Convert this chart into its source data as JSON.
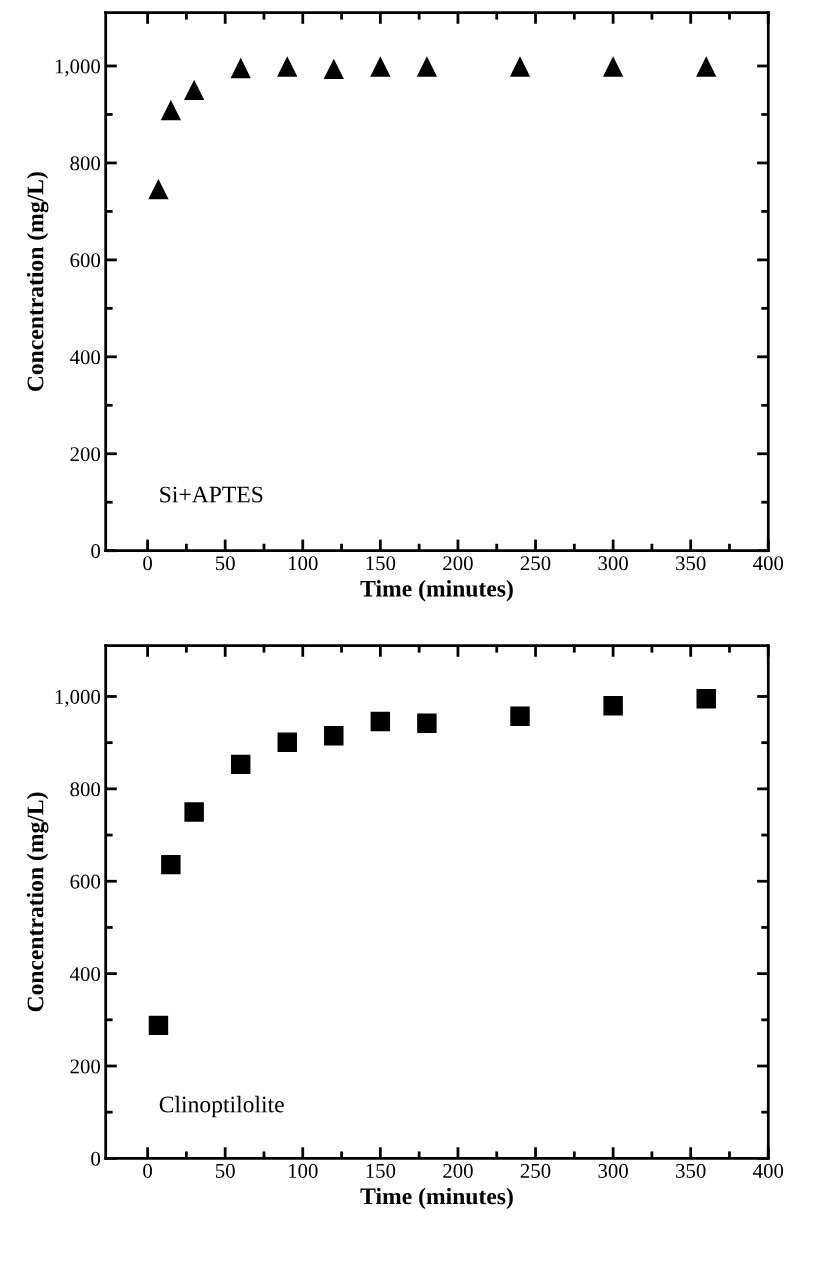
{
  "chart_data": [
    {
      "type": "scatter",
      "xlabel": "Time (minutes)",
      "ylabel": "Concentration (mg/L)",
      "annotations": [
        "Si+APTES"
      ],
      "marker": "triangle",
      "grid": false,
      "legend": false,
      "x": [
        7,
        15,
        30,
        60,
        90,
        120,
        150,
        180,
        240,
        300,
        360
      ],
      "series": [
        {
          "color": "#000000",
          "values": [
            745,
            908,
            950,
            995,
            998,
            993,
            998,
            998,
            998,
            998,
            998
          ]
        }
      ],
      "xlim": [
        -27,
        400
      ],
      "ylim": [
        0,
        1110
      ],
      "xticks": [
        0,
        {
          "value": 25,
          "label": null
        },
        50,
        {
          "value": 75,
          "label": null
        },
        100,
        {
          "value": 125,
          "label": null
        },
        150,
        {
          "value": 175,
          "label": null
        },
        200,
        {
          "value": 225,
          "label": null
        },
        250,
        {
          "value": 275,
          "label": null
        },
        300,
        {
          "value": 325,
          "label": null
        },
        350,
        {
          "value": 375,
          "label": null
        },
        400
      ],
      "yticks": [
        0,
        {
          "value": 100,
          "label": null
        },
        200,
        {
          "value": 300,
          "label": null
        },
        400,
        {
          "value": 500,
          "label": null
        },
        600,
        {
          "value": 700,
          "label": null
        },
        800,
        {
          "value": 900,
          "label": null
        },
        {
          "value": 1000,
          "label": "1,000"
        }
      ]
    },
    {
      "type": "scatter",
      "xlabel": "Time (minutes)",
      "ylabel": "Concentration (mg/L)",
      "annotations": [
        "Clinoptilolite"
      ],
      "marker": "square",
      "grid": false,
      "legend": false,
      "x": [
        7,
        15,
        30,
        60,
        90,
        120,
        150,
        180,
        240,
        300,
        360
      ],
      "series": [
        {
          "color": "#000000",
          "values": [
            288,
            636,
            750,
            853,
            901,
            915,
            946,
            942,
            957,
            980,
            995
          ]
        }
      ],
      "xlim": [
        -27,
        400
      ],
      "ylim": [
        0,
        1110
      ],
      "xticks": [
        0,
        {
          "value": 25,
          "label": null
        },
        50,
        {
          "value": 75,
          "label": null
        },
        100,
        {
          "value": 125,
          "label": null
        },
        150,
        {
          "value": 175,
          "label": null
        },
        200,
        {
          "value": 225,
          "label": null
        },
        250,
        {
          "value": 275,
          "label": null
        },
        300,
        {
          "value": 325,
          "label": null
        },
        350,
        {
          "value": 375,
          "label": null
        },
        400
      ],
      "yticks": [
        0,
        {
          "value": 100,
          "label": null
        },
        200,
        {
          "value": 300,
          "label": null
        },
        400,
        {
          "value": 500,
          "label": null
        },
        600,
        {
          "value": 700,
          "label": null
        },
        800,
        {
          "value": 900,
          "label": null
        },
        {
          "value": 1000,
          "label": "1,000"
        }
      ]
    }
  ]
}
